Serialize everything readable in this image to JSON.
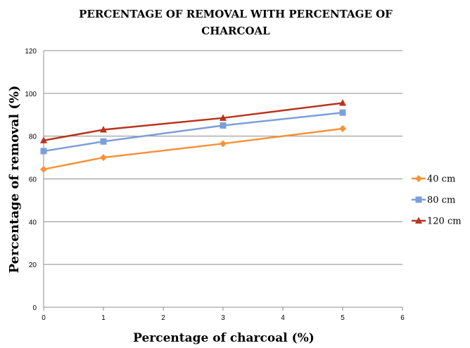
{
  "chart_data": {
    "type": "line",
    "title_lines": [
      "PERCENTAGE OF REMOVAL WITH PERCENTAGE OF",
      "CHARCOAL"
    ],
    "xlabel": "Percentage of charcoal (%)",
    "ylabel": "Percentage of removal (%)",
    "xlim": [
      0,
      6
    ],
    "ylim": [
      0,
      120
    ],
    "xticks": [
      "0",
      "1",
      "2",
      "3",
      "4",
      "5",
      "6"
    ],
    "yticks": [
      "0",
      "20",
      "40",
      "60",
      "80",
      "100",
      "120"
    ],
    "x": [
      0,
      1,
      3,
      5
    ],
    "grid": "horizontal",
    "legend_position": "right",
    "series": [
      {
        "name": "40 cm",
        "values": [
          64.5,
          70,
          76.5,
          83.5
        ],
        "color": "#f7923a",
        "marker": "diamond"
      },
      {
        "name": "80 cm",
        "values": [
          73,
          77.5,
          85,
          91
        ],
        "color": "#7b9fdb",
        "marker": "square"
      },
      {
        "name": "120 cm",
        "values": [
          78,
          83,
          88.5,
          95.5
        ],
        "color": "#b8341f",
        "marker": "triangle"
      }
    ]
  }
}
